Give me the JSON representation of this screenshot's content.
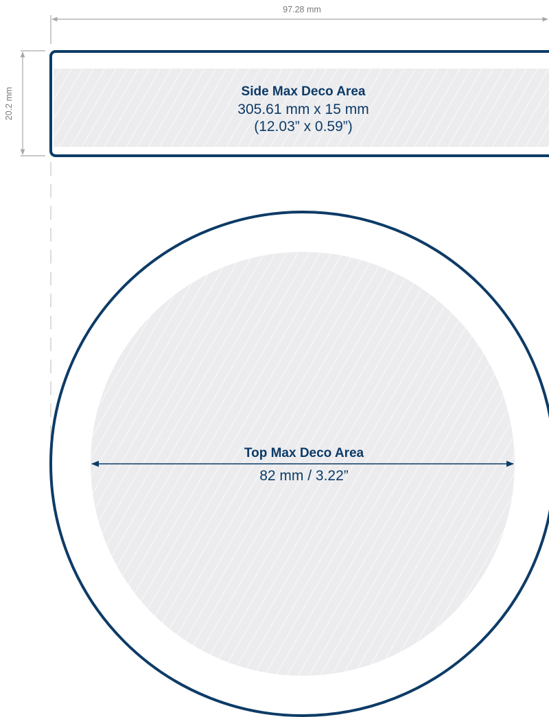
{
  "dimensions": {
    "width_label": "97.28 mm",
    "height_label": "20.2 mm"
  },
  "side_area": {
    "title": "Side Max Deco Area",
    "size_mm": "305.61 mm x 15 mm",
    "size_in": "(12.03” x 0.59”)"
  },
  "top_area": {
    "title": "Top Max Deco Area",
    "diameter": "82 mm / 3.22”"
  },
  "colors": {
    "outline": "#0d3b66",
    "title": "#0d3b66",
    "fill": "#ececef",
    "hatch": "#ffffff",
    "dimension_line": "#a8a8a8",
    "dimension_text": "#7a7a7a"
  }
}
